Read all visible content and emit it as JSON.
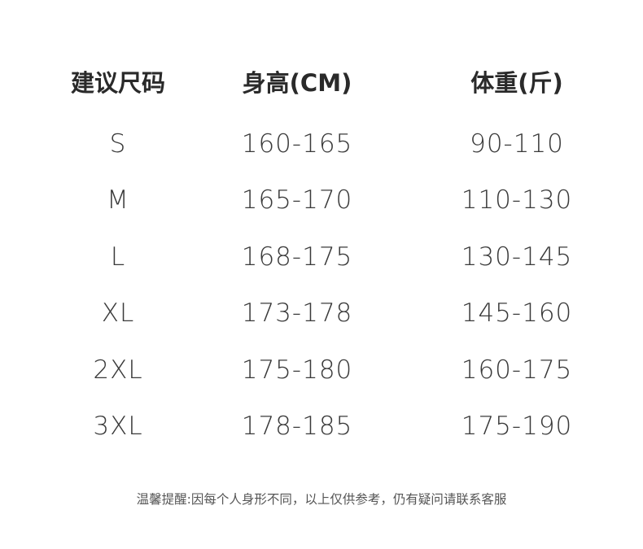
{
  "headers": [
    "建议尺码",
    "身高(CM)",
    "体重(斤)"
  ],
  "rows": [
    [
      "S",
      "160-165",
      "90-110"
    ],
    [
      "M",
      "165-170",
      "110-130"
    ],
    [
      "L",
      "168-175",
      "130-145"
    ],
    [
      "XL",
      "173-178",
      "145-160"
    ],
    [
      "2XL",
      "175-180",
      "160-175"
    ],
    [
      "3XL",
      "178-185",
      "175-190"
    ]
  ],
  "note": "温馨提醒:因每个人身形不同，以上仅供参考，仍有疑问请联系客服"
}
